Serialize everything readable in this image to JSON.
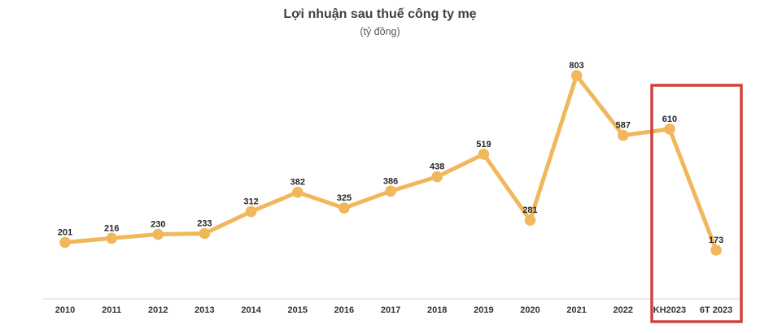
{
  "header": {
    "title": "Lợi nhuận sau thuế công ty mẹ",
    "subtitle": "(tỷ đồng)"
  },
  "colors": {
    "line": "#F0B75B",
    "marker": "#F0B75B",
    "value_label": "#262626",
    "axis_label": "#333333",
    "axis_line": "#D9D9D9",
    "highlight_box": "#CF433F",
    "title_text": "#404040",
    "subtitle_text": "#595959"
  },
  "chart_data": {
    "type": "line",
    "title": "Lợi nhuận sau thuế công ty mẹ",
    "subtitle": "(tỷ đồng)",
    "categories": [
      "2010",
      "2011",
      "2012",
      "2013",
      "2014",
      "2015",
      "2016",
      "2017",
      "2018",
      "2019",
      "2020",
      "2021",
      "2022",
      "KH2023",
      "6T 2023"
    ],
    "values": [
      201,
      216,
      230,
      233,
      312,
      382,
      325,
      386,
      438,
      519,
      281,
      803,
      587,
      610,
      173
    ],
    "xlabel": "",
    "ylabel": "",
    "ylim": [
      0,
      860
    ],
    "grid": false,
    "legend": "none",
    "data_labels": true,
    "highlight": {
      "from_category": "KH2023",
      "to_category": "6T 2023",
      "style": "red-outline-box"
    }
  }
}
